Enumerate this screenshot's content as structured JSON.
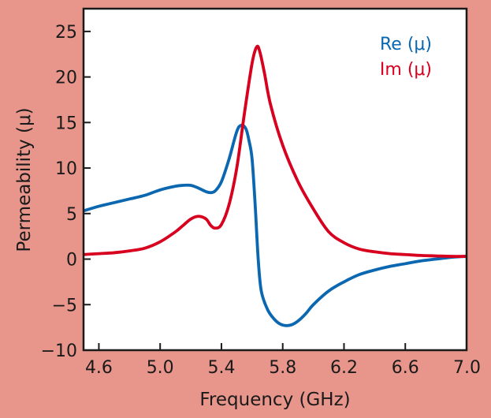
{
  "chart_data": {
    "type": "line",
    "title": "",
    "xlabel": "Frequency (GHz)",
    "ylabel": "Permeability (μ)",
    "xlim": [
      4.5,
      7.0
    ],
    "ylim": [
      -10,
      27.5
    ],
    "x_ticks": [
      4.6,
      5.0,
      5.4,
      5.8,
      6.2,
      6.6,
      7.0
    ],
    "x_tick_labels": [
      "4.6",
      "5.0",
      "5.4",
      "5.8",
      "6.2",
      "6.6",
      "7.0"
    ],
    "y_ticks": [
      -10,
      -5,
      0,
      5,
      10,
      15,
      20,
      25
    ],
    "y_tick_labels": [
      "−10",
      "−5",
      "0",
      "5",
      "10",
      "15",
      "20",
      "25"
    ],
    "grid": false,
    "legend_position": "top-right",
    "series": [
      {
        "name": "Re (μ)",
        "color": "#0a67b0",
        "points": [
          [
            4.5,
            5.3
          ],
          [
            4.6,
            5.8
          ],
          [
            4.7,
            6.2
          ],
          [
            4.8,
            6.6
          ],
          [
            4.9,
            7.0
          ],
          [
            5.0,
            7.6
          ],
          [
            5.1,
            8.0
          ],
          [
            5.15,
            8.1
          ],
          [
            5.2,
            8.1
          ],
          [
            5.25,
            7.8
          ],
          [
            5.3,
            7.4
          ],
          [
            5.33,
            7.3
          ],
          [
            5.36,
            7.5
          ],
          [
            5.4,
            8.5
          ],
          [
            5.45,
            11.0
          ],
          [
            5.5,
            14.0
          ],
          [
            5.53,
            14.7
          ],
          [
            5.56,
            14.3
          ],
          [
            5.58,
            13.0
          ],
          [
            5.6,
            11.0
          ],
          [
            5.62,
            6.0
          ],
          [
            5.64,
            0.0
          ],
          [
            5.66,
            -3.5
          ],
          [
            5.7,
            -5.5
          ],
          [
            5.74,
            -6.5
          ],
          [
            5.78,
            -7.1
          ],
          [
            5.82,
            -7.3
          ],
          [
            5.86,
            -7.2
          ],
          [
            5.9,
            -6.8
          ],
          [
            5.95,
            -6.0
          ],
          [
            6.0,
            -5.0
          ],
          [
            6.1,
            -3.5
          ],
          [
            6.2,
            -2.5
          ],
          [
            6.3,
            -1.7
          ],
          [
            6.4,
            -1.2
          ],
          [
            6.5,
            -0.8
          ],
          [
            6.6,
            -0.5
          ],
          [
            6.7,
            -0.2
          ],
          [
            6.8,
            0.0
          ],
          [
            6.9,
            0.2
          ],
          [
            7.0,
            0.3
          ]
        ]
      },
      {
        "name": "Im (μ)",
        "color": "#d8001f",
        "points": [
          [
            4.5,
            0.5
          ],
          [
            4.6,
            0.6
          ],
          [
            4.7,
            0.7
          ],
          [
            4.8,
            0.9
          ],
          [
            4.9,
            1.2
          ],
          [
            5.0,
            1.9
          ],
          [
            5.1,
            3.0
          ],
          [
            5.15,
            3.7
          ],
          [
            5.2,
            4.4
          ],
          [
            5.25,
            4.7
          ],
          [
            5.3,
            4.4
          ],
          [
            5.33,
            3.7
          ],
          [
            5.36,
            3.4
          ],
          [
            5.4,
            3.8
          ],
          [
            5.45,
            6.0
          ],
          [
            5.5,
            10.0
          ],
          [
            5.55,
            16.0
          ],
          [
            5.6,
            21.5
          ],
          [
            5.63,
            23.3
          ],
          [
            5.65,
            22.8
          ],
          [
            5.68,
            20.5
          ],
          [
            5.72,
            17.0
          ],
          [
            5.8,
            12.5
          ],
          [
            5.9,
            8.5
          ],
          [
            6.0,
            5.5
          ],
          [
            6.1,
            3.0
          ],
          [
            6.2,
            1.8
          ],
          [
            6.3,
            1.1
          ],
          [
            6.4,
            0.8
          ],
          [
            6.5,
            0.6
          ],
          [
            6.6,
            0.5
          ],
          [
            6.7,
            0.4
          ],
          [
            6.8,
            0.35
          ],
          [
            6.9,
            0.3
          ],
          [
            7.0,
            0.3
          ]
        ]
      }
    ]
  }
}
